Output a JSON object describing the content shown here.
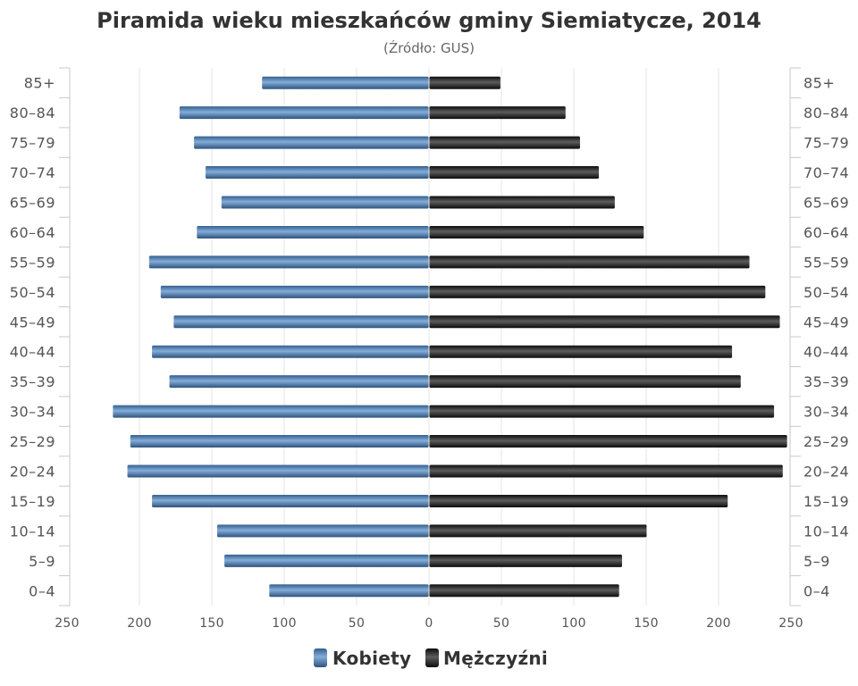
{
  "chart_data": {
    "type": "bar",
    "subtype": "population-pyramid",
    "orientation": "horizontal",
    "title": "Piramida wieku mieszkańców gminy Siemiatycze, 2014",
    "subtitle": "(Źródło: GUS)",
    "categories": [
      "85+",
      "80–84",
      "75–79",
      "70–74",
      "65–69",
      "60–64",
      "55–59",
      "50–54",
      "45–49",
      "40–44",
      "35–39",
      "30–34",
      "25–29",
      "20–24",
      "15–19",
      "10–14",
      "5–9",
      "0–4"
    ],
    "xlim": [
      0,
      250
    ],
    "xtick_labels": [
      "250",
      "200",
      "150",
      "100",
      "50",
      "0",
      "50",
      "100",
      "150",
      "200",
      "250"
    ],
    "series": [
      {
        "name": "Kobiety",
        "color": "#4a86c8",
        "values": [
          115,
          172,
          162,
          154,
          143,
          160,
          193,
          185,
          176,
          191,
          179,
          218,
          206,
          208,
          191,
          146,
          141,
          110
        ]
      },
      {
        "name": "Mężczyźni",
        "color": "#111111",
        "values": [
          49,
          94,
          104,
          117,
          128,
          148,
          221,
          232,
          242,
          209,
          215,
          238,
          247,
          244,
          206,
          150,
          133,
          131
        ]
      }
    ],
    "grid": true,
    "legend": "bottom-center"
  }
}
